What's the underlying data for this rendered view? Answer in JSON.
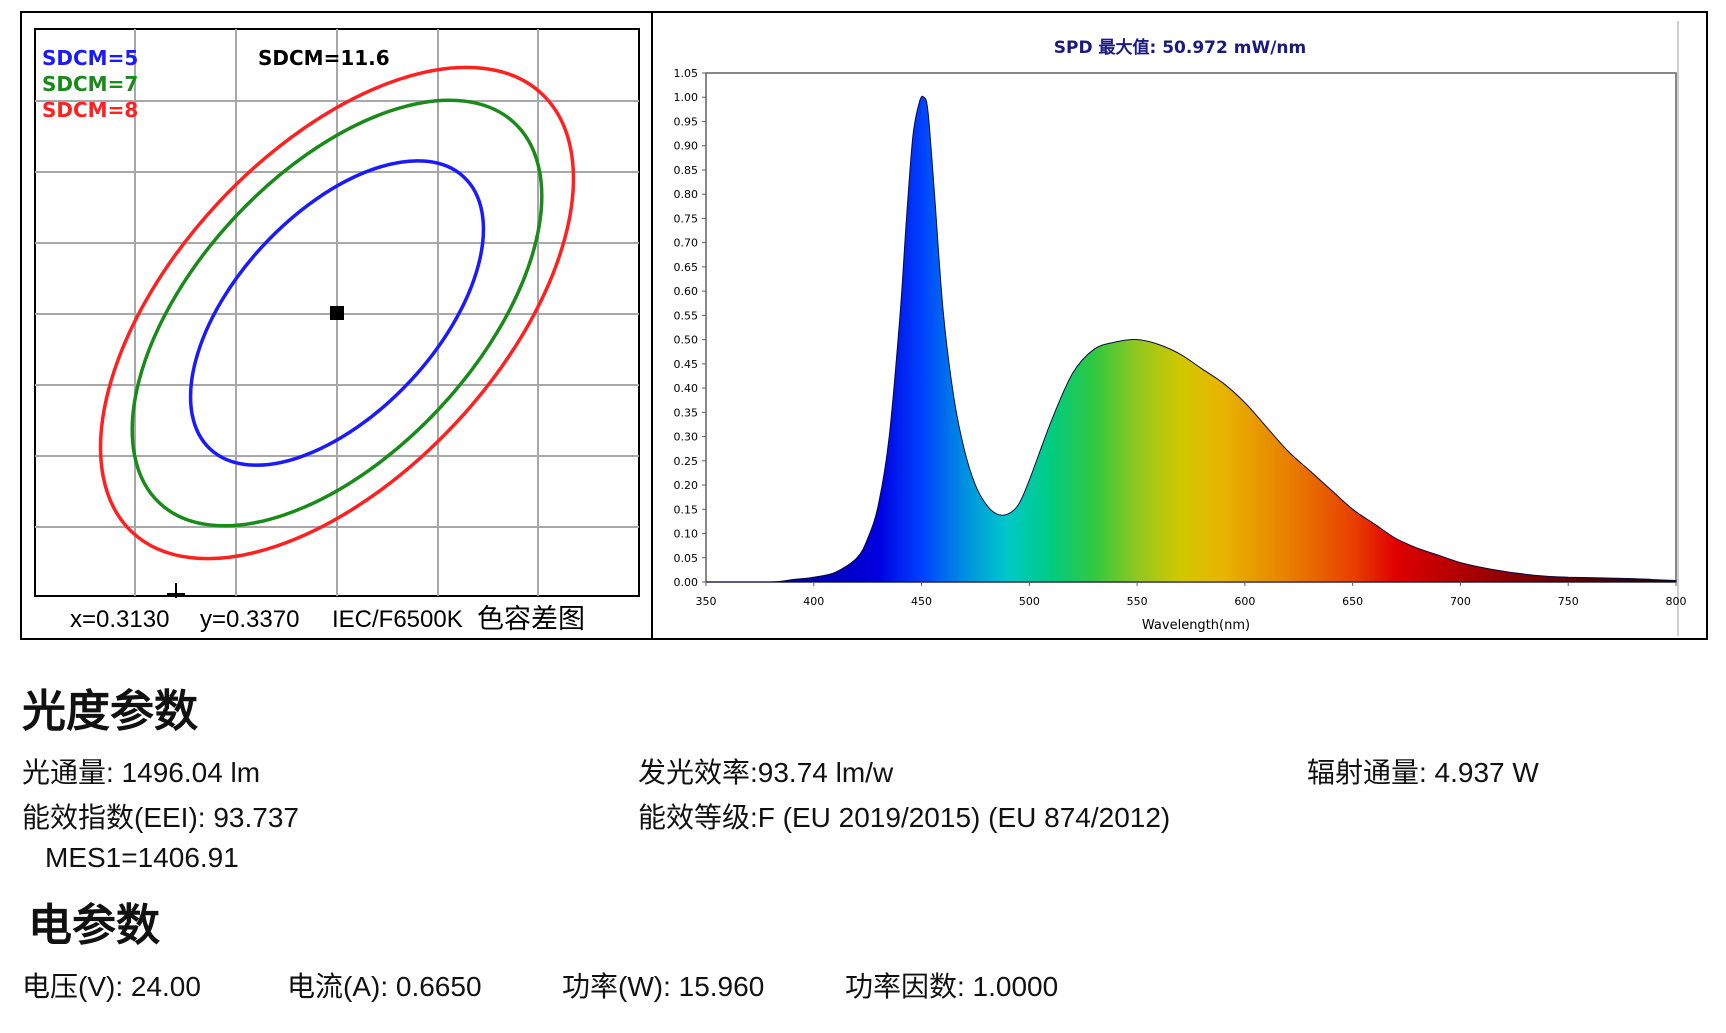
{
  "sdcm_panel": {
    "legend": [
      {
        "label": "SDCM=5",
        "color": "#1a1aff"
      },
      {
        "label": "SDCM=7",
        "color": "#1a8a1a"
      },
      {
        "label": "SDCM=8",
        "color": "#ff2020"
      }
    ],
    "result_label": "SDCM=11.6",
    "footer": {
      "x": "x=0.3130",
      "y": "y=0.3370",
      "standard": "IEC/F6500K",
      "caption": "色容差图"
    }
  },
  "chart_data": {
    "type": "area",
    "title": "SPD 最大值: 50.972 mW/nm",
    "xlabel": "Wavelength(nm)",
    "ylabel": "",
    "xlim": [
      350,
      800
    ],
    "ylim": [
      0,
      1.05
    ],
    "x_ticks": [
      "350",
      "400",
      "450",
      "500",
      "550",
      "600",
      "650",
      "700",
      "750",
      "800"
    ],
    "y_ticks": [
      "0.00",
      "0.05",
      "0.10",
      "0.15",
      "0.20",
      "0.25",
      "0.30",
      "0.35",
      "0.40",
      "0.45",
      "0.50",
      "0.55",
      "0.60",
      "0.65",
      "0.70",
      "0.75",
      "0.80",
      "0.85",
      "0.90",
      "0.95",
      "1.00",
      "1.05"
    ],
    "grid": false,
    "fill": "visible-spectrum gradient",
    "x": [
      350,
      380,
      390,
      400,
      410,
      420,
      425,
      430,
      435,
      440,
      443,
      446,
      449,
      451,
      453,
      456,
      460,
      465,
      470,
      475,
      480,
      485,
      490,
      495,
      500,
      510,
      520,
      530,
      540,
      550,
      560,
      570,
      580,
      590,
      600,
      610,
      620,
      630,
      640,
      650,
      660,
      670,
      680,
      690,
      700,
      710,
      720,
      730,
      740,
      750,
      760,
      770,
      780,
      790,
      800
    ],
    "y": [
      0.0,
      0.0,
      0.005,
      0.01,
      0.02,
      0.05,
      0.09,
      0.16,
      0.3,
      0.55,
      0.75,
      0.92,
      0.99,
      1.0,
      0.97,
      0.8,
      0.56,
      0.38,
      0.27,
      0.2,
      0.16,
      0.14,
      0.14,
      0.16,
      0.21,
      0.33,
      0.43,
      0.48,
      0.495,
      0.5,
      0.49,
      0.47,
      0.44,
      0.41,
      0.37,
      0.32,
      0.27,
      0.23,
      0.19,
      0.15,
      0.12,
      0.09,
      0.07,
      0.055,
      0.04,
      0.03,
      0.022,
      0.016,
      0.012,
      0.01,
      0.009,
      0.008,
      0.007,
      0.005,
      0.003
    ]
  },
  "photometric": {
    "heading": "光度参数",
    "luminous_flux": "光通量: 1496.04 lm",
    "efficacy": "发光效率:93.74 lm/w",
    "radiant_flux": "辐射通量: 4.937 W",
    "eei": "能效指数(EEI): 93.737",
    "energy_class": "能效等级:F (EU 2019/2015) (EU 874/2012)",
    "mes1": "MES1=1406.91"
  },
  "electrical": {
    "heading": "电参数",
    "voltage": "电压(V): 24.00",
    "current": "电流(A): 0.6650",
    "power": "功率(W): 15.960",
    "power_factor": "功率因数: 1.0000"
  }
}
